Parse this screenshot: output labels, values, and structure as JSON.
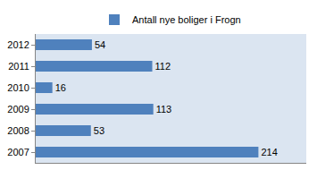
{
  "chart_data": {
    "type": "bar",
    "orientation": "horizontal",
    "categories": [
      "2007",
      "2008",
      "2009",
      "2010",
      "2011",
      "2012"
    ],
    "series": [
      {
        "name": "Antall nye boliger i Frogn",
        "color": "#4f81bd",
        "values": [
          214,
          53,
          113,
          16,
          112,
          54
        ]
      }
    ],
    "xlim": [
      0,
      260
    ],
    "data_labels": true,
    "tick_labels": "y",
    "grid": false,
    "legend": "top"
  }
}
